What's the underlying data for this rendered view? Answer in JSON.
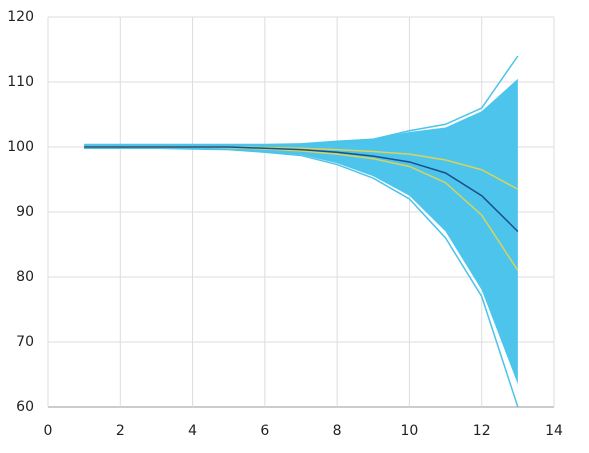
{
  "chart_data": {
    "type": "line",
    "x": [
      1,
      2,
      3,
      4,
      5,
      6,
      7,
      8,
      9,
      10,
      11,
      12,
      13
    ],
    "band": {
      "color": "#4dc4ec",
      "upper": [
        100.5,
        100.5,
        100.5,
        100.5,
        100.5,
        100.5,
        100.6,
        101,
        101.3,
        102.3,
        103,
        105.5,
        110.5
      ],
      "lower": [
        99.7,
        99.7,
        99.7,
        99.7,
        99.6,
        99.2,
        98.8,
        97.5,
        95.5,
        92.5,
        87,
        78,
        63.5
      ]
    },
    "series": [
      {
        "color": "#4cc3ea",
        "values": [
          100.2,
          100.2,
          100.2,
          100.2,
          100.2,
          100.3,
          100.4,
          100.8,
          101.2,
          102.5,
          103.5,
          106,
          114
        ]
      },
      {
        "color": "#4cc3ea",
        "values": [
          99.8,
          99.8,
          99.8,
          99.7,
          99.6,
          99.2,
          98.7,
          97.3,
          95.2,
          92,
          86,
          77,
          60
        ]
      },
      {
        "color": "#d6d45c",
        "values": [
          100,
          100,
          100,
          100,
          100,
          99.9,
          99.8,
          99.6,
          99.3,
          98.9,
          98,
          96.5,
          93.5
        ]
      },
      {
        "color": "#d6d45c",
        "values": [
          100,
          100,
          100,
          100,
          99.9,
          99.7,
          99.4,
          98.9,
          98.2,
          97,
          94.5,
          89.5,
          81
        ]
      },
      {
        "color": "#1a4f8a",
        "values": [
          100,
          100,
          100,
          100,
          100,
          99.8,
          99.6,
          99.2,
          98.6,
          97.7,
          96,
          92.5,
          87
        ]
      }
    ],
    "xlim": [
      0,
      14
    ],
    "xticks": [
      0,
      2,
      4,
      6,
      8,
      10,
      12,
      14
    ],
    "ylim": [
      60,
      120
    ],
    "yticks": [
      60,
      70,
      80,
      90,
      100,
      110,
      120
    ],
    "grid": true
  }
}
